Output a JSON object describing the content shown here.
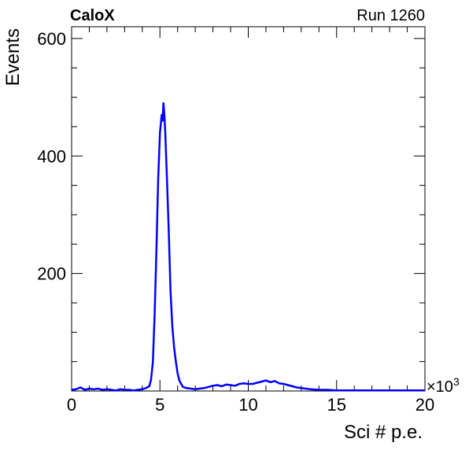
{
  "header": {
    "left": "CaloX",
    "right": "Run 1260"
  },
  "chart_data": {
    "type": "histogram",
    "xlabel": "Sci # p.e.",
    "ylabel": "Events",
    "x_multiplier": "×10",
    "x_multiplier_exp": "3",
    "xlim": [
      0,
      20
    ],
    "ylim": [
      0,
      620
    ],
    "x_ticks": [
      0,
      5,
      10,
      15,
      20
    ],
    "y_ticks": [
      200,
      400,
      600
    ],
    "grid": false,
    "color": "#0000ff",
    "series": [
      {
        "x": [
          0,
          0.25,
          0.5,
          0.75,
          1,
          1.25,
          1.5,
          1.75,
          2,
          2.25,
          2.5,
          2.75,
          3,
          3.25,
          3.5,
          3.75,
          4,
          4.2,
          4.4,
          4.5,
          4.6,
          4.7,
          4.8,
          4.9,
          5.0,
          5.1,
          5.15,
          5.2,
          5.25,
          5.3,
          5.4,
          5.5,
          5.6,
          5.7,
          5.8,
          5.9,
          6.0,
          6.1,
          6.2,
          6.3,
          6.5,
          6.75,
          7,
          7.25,
          7.5,
          7.75,
          8,
          8.25,
          8.5,
          8.75,
          9,
          9.25,
          9.5,
          9.75,
          10,
          10.25,
          10.5,
          10.75,
          11,
          11.25,
          11.5,
          11.75,
          12,
          12.25,
          12.5,
          12.75,
          13,
          13.25,
          13.5,
          14,
          14.5,
          15,
          15.5,
          16,
          17,
          18,
          19,
          20
        ],
        "y": [
          2,
          3,
          6,
          2,
          4,
          3,
          4,
          2,
          3,
          2,
          1,
          3,
          2,
          2,
          1,
          2,
          3,
          5,
          8,
          20,
          50,
          130,
          240,
          360,
          440,
          470,
          460,
          490,
          470,
          440,
          360,
          270,
          170,
          110,
          75,
          50,
          30,
          18,
          12,
          7,
          5,
          4,
          3,
          4,
          5,
          7,
          9,
          10,
          8,
          11,
          10,
          9,
          12,
          13,
          12,
          12,
          14,
          16,
          18,
          15,
          17,
          13,
          12,
          10,
          8,
          6,
          5,
          4,
          3,
          2,
          2,
          1,
          1,
          1,
          1,
          1,
          1,
          1
        ]
      }
    ]
  }
}
